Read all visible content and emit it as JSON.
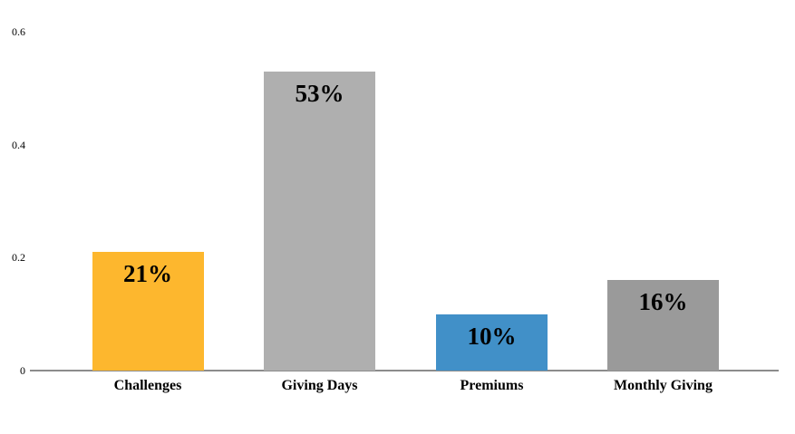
{
  "chart_data": {
    "type": "bar",
    "title": "",
    "categories": [
      "Challenges",
      "Giving Days",
      "Premiums",
      "Monthly Giving"
    ],
    "values": [
      0.21,
      0.53,
      0.1,
      0.16
    ],
    "value_labels": [
      "21%",
      "53%",
      "10%",
      "16%"
    ],
    "bar_colors": [
      "#FDB72E",
      "#AFAFAF",
      "#4190C8",
      "#9A9A9A"
    ],
    "xlabel": "",
    "ylabel": "",
    "ylim": [
      0,
      0.6
    ],
    "yticks": [
      0,
      0.2,
      0.4,
      0.6
    ],
    "ytick_labels": [
      "0",
      "0.2",
      "0.4",
      "0.6"
    ],
    "grid": false,
    "legend": false,
    "axis_line_color": "#8C8C8C",
    "text_color": "#000000",
    "background_color": "#FFFFFF"
  }
}
